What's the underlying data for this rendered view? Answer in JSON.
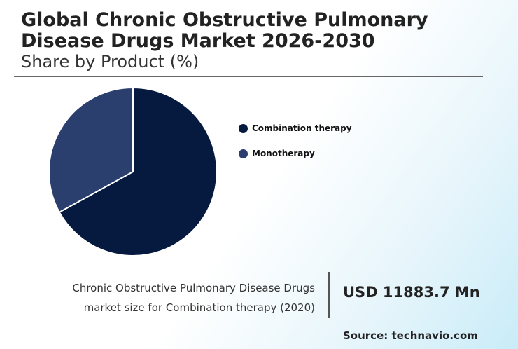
{
  "colors": {
    "primary": "#061a40",
    "secondary": "#2a3f6e"
  },
  "chart_data": {
    "type": "pie",
    "title": "Global Chronic Obstructive Pulmonary Disease Drugs Market 2026-2030",
    "subtitle": "Share by Product (%)",
    "categories": [
      "Combination therapy",
      "Monotherapy"
    ],
    "values": [
      67,
      33
    ],
    "legend": "right"
  },
  "footer": {
    "description_line1": "Chronic Obstructive Pulmonary Disease Drugs",
    "description_line2": "market size for Combination therapy (2020)",
    "value": "USD 11883.7 Mn",
    "source": "Source: technavio.com"
  }
}
